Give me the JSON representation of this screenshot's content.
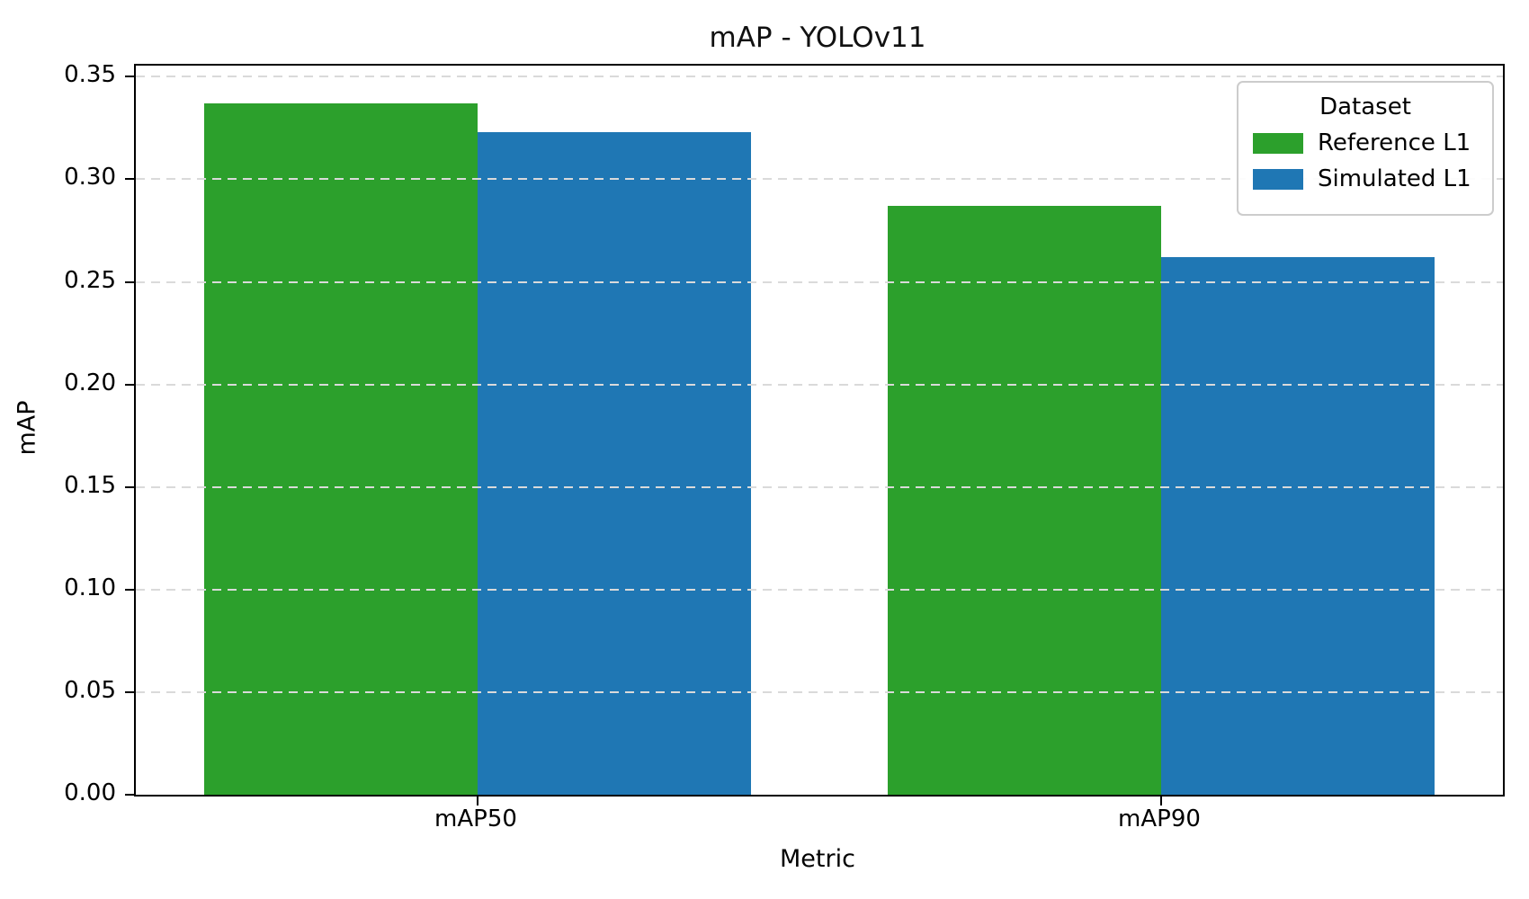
{
  "chart_data": {
    "type": "bar",
    "title": "mAP - YOLOv11",
    "xlabel": "Metric",
    "ylabel": "mAP",
    "categories": [
      "mAP50",
      "mAP90"
    ],
    "series": [
      {
        "name": "Reference L1",
        "color": "#2ca02c",
        "values": [
          0.337,
          0.287
        ]
      },
      {
        "name": "Simulated L1",
        "color": "#1f77b4",
        "values": [
          0.323,
          0.262
        ]
      }
    ],
    "legend": {
      "title": "Dataset",
      "position": "upper right",
      "entries": [
        "Reference L1",
        "Simulated L1"
      ]
    },
    "ylim": [
      0,
      0.3554
    ],
    "yticks": [
      0.0,
      0.05,
      0.1,
      0.15,
      0.2,
      0.25,
      0.3,
      0.35
    ],
    "ytick_labels": [
      "0.00",
      "0.05",
      "0.10",
      "0.15",
      "0.20",
      "0.25",
      "0.30",
      "0.35"
    ],
    "grid": "horizontal-dashed",
    "grid_on_top_of_bars": true,
    "colors": {
      "reference": "#2ca02c",
      "simulated": "#1f77b4",
      "grid": "#dadada",
      "spine": "#000000"
    }
  }
}
